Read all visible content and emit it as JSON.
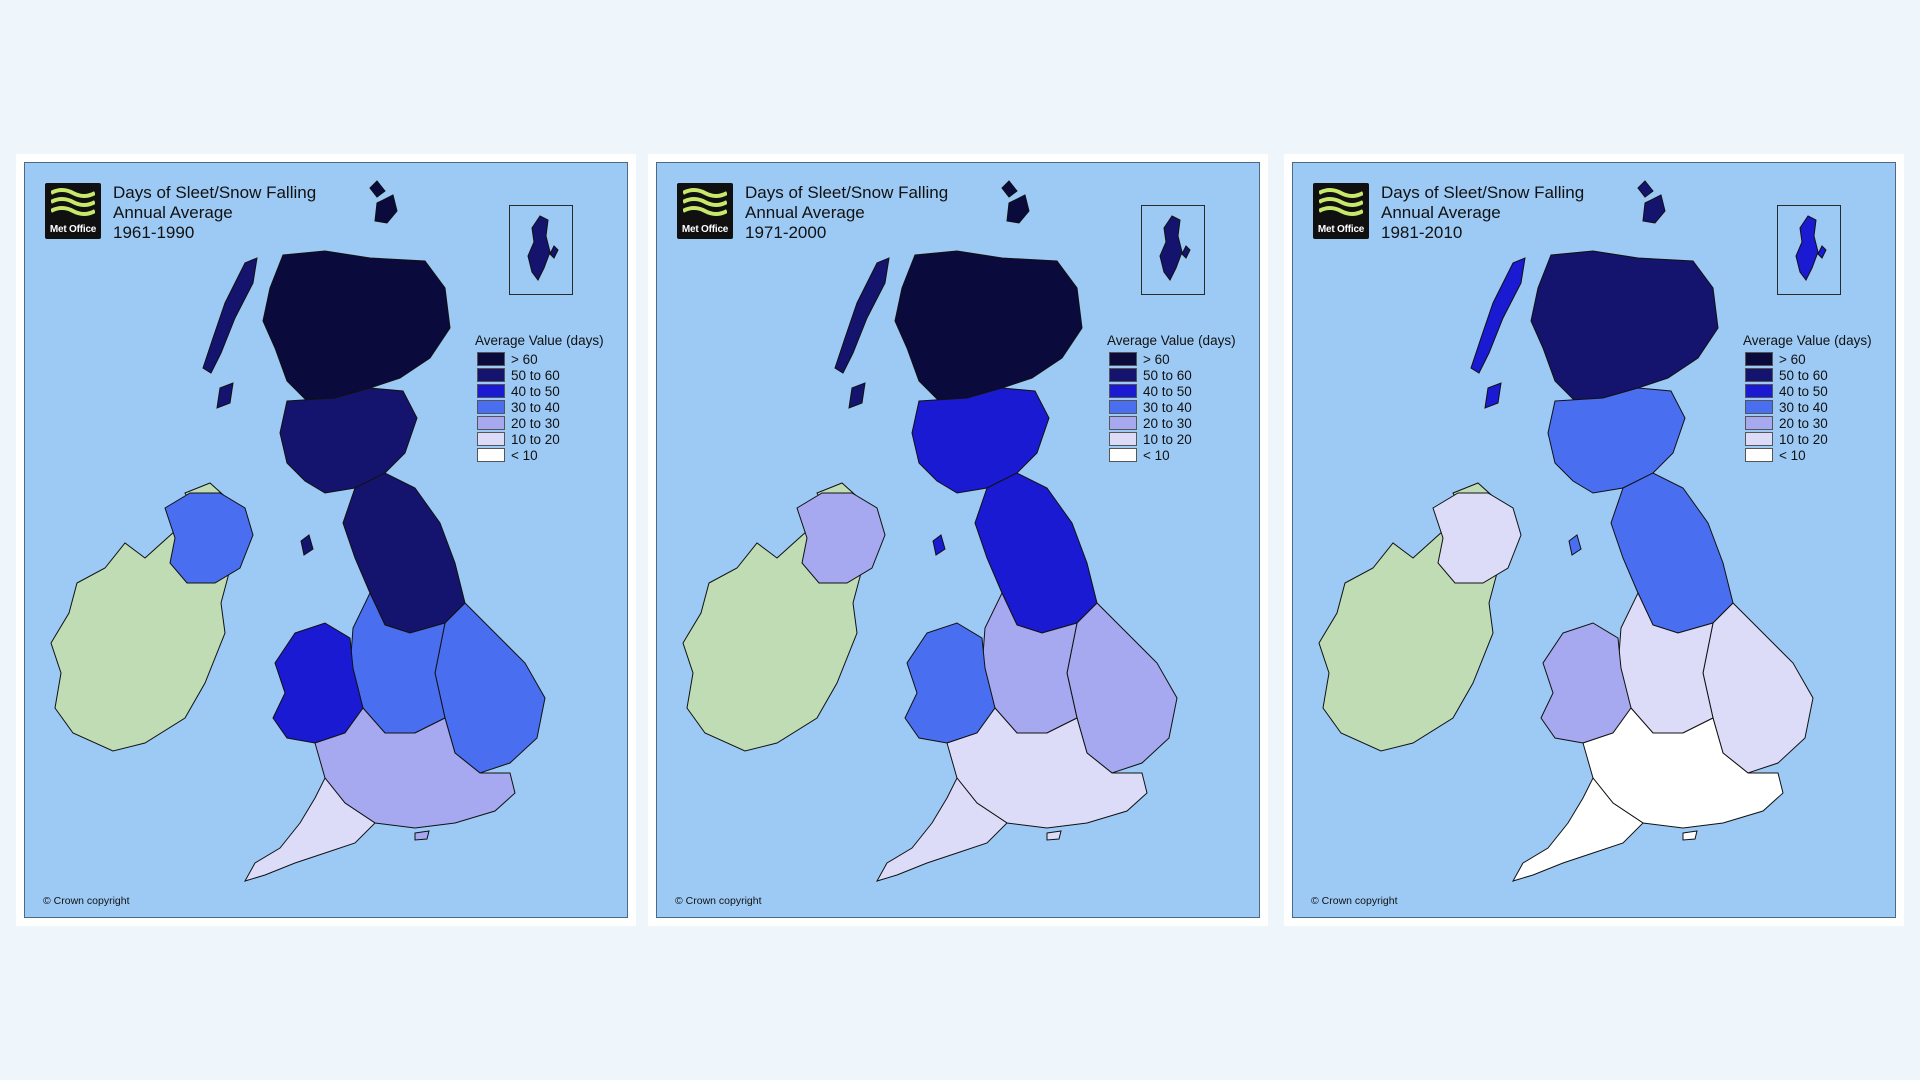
{
  "legend": {
    "title": "Average Value (days)",
    "classes": [
      {
        "label": "> 60",
        "color": "#0a0a3c"
      },
      {
        "label": "50 to 60",
        "color": "#14146e"
      },
      {
        "label": "40 to 50",
        "color": "#1a1ad2"
      },
      {
        "label": "30 to 40",
        "color": "#4a6ef0"
      },
      {
        "label": "20 to 30",
        "color": "#a6a8f0"
      },
      {
        "label": "10 to 20",
        "color": "#dcdcf8"
      },
      {
        "label": "< 10",
        "color": "#ffffff"
      }
    ]
  },
  "maps": [
    {
      "logo_text": "Met Office",
      "title": "Days of Sleet/Snow Falling",
      "subtitle": "Annual Average",
      "period": "1961-1990",
      "copyright": "© Crown copyright",
      "regions": {
        "n_scotland": 0,
        "s_scotland": 1,
        "n_england": 1,
        "wales": 2,
        "midlands": 3,
        "east_england": 3,
        "south_england": 4,
        "southwest": 5,
        "n_ireland": 3,
        "isles": 1
      }
    },
    {
      "logo_text": "Met Office",
      "title": "Days of Sleet/Snow Falling",
      "subtitle": "Annual Average",
      "period": "1971-2000",
      "copyright": "© Crown copyright",
      "regions": {
        "n_scotland": 0,
        "s_scotland": 2,
        "n_england": 2,
        "wales": 3,
        "midlands": 4,
        "east_england": 4,
        "south_england": 5,
        "southwest": 5,
        "n_ireland": 4,
        "isles": 1
      }
    },
    {
      "logo_text": "Met Office",
      "title": "Days of Sleet/Snow Falling",
      "subtitle": "Annual Average",
      "period": "1981-2010",
      "copyright": "© Crown copyright",
      "regions": {
        "n_scotland": 1,
        "s_scotland": 3,
        "n_england": 3,
        "wales": 4,
        "midlands": 5,
        "east_england": 5,
        "south_england": 6,
        "southwest": 6,
        "n_ireland": 5,
        "isles": 2
      }
    }
  ],
  "colors": {
    "sea": "#9dcaf5",
    "ireland_land": "#c0dcb4",
    "coast": "#111111"
  }
}
